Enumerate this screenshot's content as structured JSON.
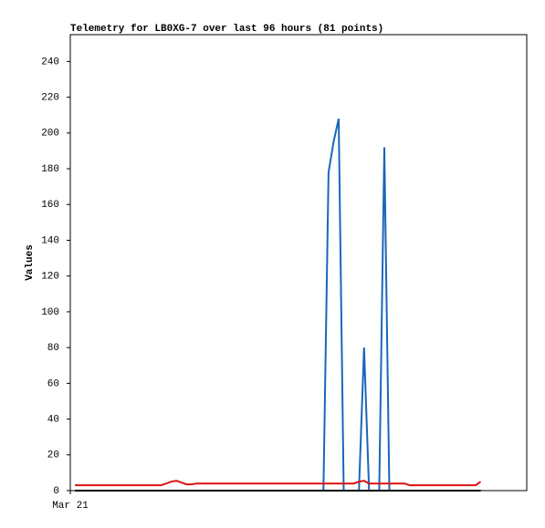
{
  "chart_data": {
    "type": "line",
    "title": "Telemetry for LB0XG-7 over last 96 hours (81 points)",
    "y_label": "Values",
    "x": [
      1.1,
      2.3,
      3.5,
      4.7,
      5.9,
      7.1,
      8.3,
      9.5,
      10.7,
      11.9,
      13.1,
      14.3,
      15.5,
      16.7,
      17.9,
      19.1,
      20.3,
      21.5,
      22.7,
      23.9,
      25.1,
      26.3,
      27.5,
      28.7,
      29.9,
      31.1,
      32.3,
      33.5,
      34.7,
      35.9,
      37.1,
      38.3,
      39.5,
      40.7,
      41.9,
      43.1,
      44.3,
      45.5,
      46.7,
      47.9,
      49.1,
      50.3,
      51.5,
      52.7,
      53.9,
      55.1,
      56.3,
      57.5,
      58.7,
      59.9,
      61.1,
      62.3,
      63.5,
      64.7,
      65.9,
      67.1,
      68.3,
      69.5,
      70.7,
      71.9,
      73.1,
      74.3,
      75.5,
      76.7,
      77.9,
      79.1,
      80.3,
      81.5,
      82.7,
      83.9,
      85.1,
      86.3,
      87.5,
      88.7,
      89.9,
      91.1,
      92.3,
      93.5,
      94.7,
      95.9,
      97.1
    ],
    "xlim": [
      0,
      108
    ],
    "xticks": [
      {
        "value": 0,
        "label": "Mar 21"
      }
    ],
    "ylim": [
      0,
      255
    ],
    "yticks": [
      0,
      20,
      40,
      60,
      80,
      100,
      120,
      140,
      160,
      180,
      200,
      220,
      240
    ],
    "series": [
      {
        "color": "#1a66bb",
        "values": [
          0,
          0,
          0,
          0,
          0,
          0,
          0,
          0,
          0,
          0,
          0,
          0,
          0,
          0,
          0,
          0,
          0,
          0,
          0,
          0,
          0,
          0,
          0,
          0,
          0,
          0,
          0,
          0,
          0,
          0,
          0,
          0,
          0,
          0,
          0,
          0,
          0,
          0,
          0,
          0,
          0,
          0,
          0,
          0,
          0,
          0,
          0,
          0,
          0,
          0,
          178,
          195,
          208,
          0,
          0,
          0,
          0,
          80,
          0,
          0,
          0,
          192,
          0,
          0,
          0,
          0,
          0,
          0,
          0,
          0,
          0,
          0,
          0,
          0,
          0,
          0,
          0,
          0,
          0,
          0,
          0
        ]
      },
      {
        "color": "#dd1111",
        "values": [
          3,
          3,
          3,
          3,
          3,
          3,
          3,
          3,
          3,
          3,
          3,
          3,
          3,
          3,
          3,
          3,
          3,
          3,
          4,
          5,
          5.5,
          4.5,
          3.5,
          3.5,
          4,
          4,
          4,
          4,
          4,
          4,
          4,
          4,
          4,
          4,
          4,
          4,
          4,
          4,
          4,
          4,
          4,
          4,
          4,
          4,
          4,
          4,
          4,
          4,
          4,
          4,
          4,
          4,
          4,
          4,
          4,
          4,
          5,
          5.5,
          4,
          4,
          4,
          4,
          4,
          4,
          4,
          4,
          3,
          3,
          3,
          3,
          3,
          3,
          3,
          3,
          3,
          3,
          3,
          3,
          3,
          3,
          5
        ]
      },
      {
        "color": "#000000",
        "values": [
          0,
          0,
          0,
          0,
          0,
          0,
          0,
          0,
          0,
          0,
          0,
          0,
          0,
          0,
          0,
          0,
          0,
          0,
          0,
          0,
          0,
          0,
          0,
          0,
          0,
          0,
          0,
          0,
          0,
          0,
          0,
          0,
          0,
          0,
          0,
          0,
          0,
          0,
          0,
          0,
          0,
          0,
          0,
          0,
          0,
          0,
          0,
          0,
          0,
          0,
          0,
          0,
          0,
          0,
          0,
          0,
          0,
          0,
          0,
          0,
          0,
          0,
          0,
          0,
          0,
          0,
          0,
          0,
          0,
          0,
          0,
          0,
          0,
          0,
          0,
          0,
          0,
          0,
          0,
          0,
          0
        ]
      }
    ]
  }
}
